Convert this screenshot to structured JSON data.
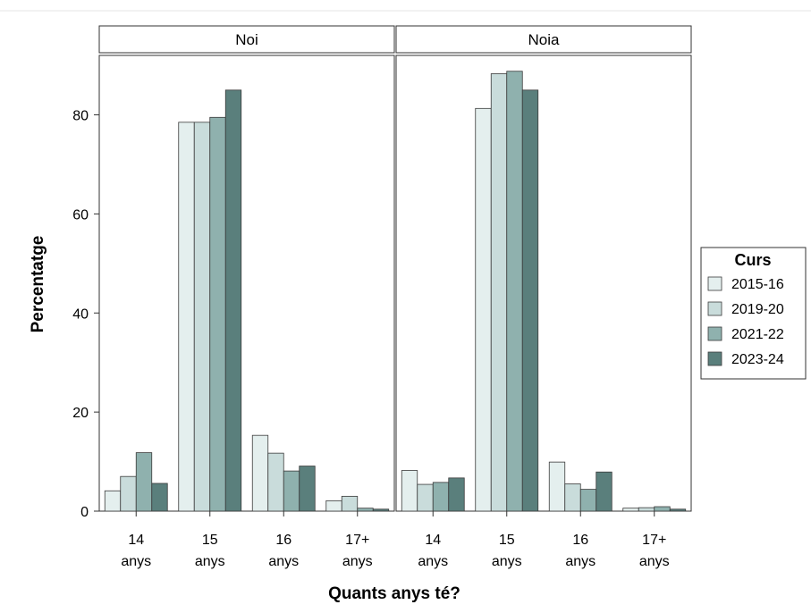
{
  "chart_data": {
    "type": "bar",
    "xlabel": "Quants anys té?",
    "ylabel": "Percentatge",
    "ylim": [
      0,
      92
    ],
    "yticks": [
      "0",
      "20",
      "40",
      "60",
      "80"
    ],
    "categories": [
      {
        "line1": "14",
        "line2": "anys"
      },
      {
        "line1": "15",
        "line2": "anys"
      },
      {
        "line1": "16",
        "line2": "anys"
      },
      {
        "line1": "17+",
        "line2": "anys"
      }
    ],
    "legend": {
      "title": "Curs",
      "position": "right",
      "entries": [
        "2015-16",
        "2019-20",
        "2021-22",
        "2023-24"
      ]
    },
    "colors": [
      "#e4efee",
      "#c9dcdb",
      "#8fb1ae",
      "#5a7f7c"
    ],
    "panels": [
      {
        "title": "Noi",
        "series": [
          {
            "name": "2015-16",
            "values": [
              4.1,
              78.5,
              15.3,
              2.1
            ]
          },
          {
            "name": "2019-20",
            "values": [
              7.0,
              78.5,
              11.7,
              3.0
            ]
          },
          {
            "name": "2021-22",
            "values": [
              11.8,
              79.5,
              8.1,
              0.6
            ]
          },
          {
            "name": "2023-24",
            "values": [
              5.6,
              85.0,
              9.1,
              0.4
            ]
          }
        ]
      },
      {
        "title": "Noia",
        "series": [
          {
            "name": "2015-16",
            "values": [
              8.2,
              81.3,
              9.9,
              0.6
            ]
          },
          {
            "name": "2019-20",
            "values": [
              5.4,
              88.3,
              5.5,
              0.7
            ]
          },
          {
            "name": "2021-22",
            "values": [
              5.8,
              88.8,
              4.4,
              0.9
            ]
          },
          {
            "name": "2023-24",
            "values": [
              6.7,
              85.0,
              7.9,
              0.4
            ]
          }
        ]
      }
    ]
  }
}
